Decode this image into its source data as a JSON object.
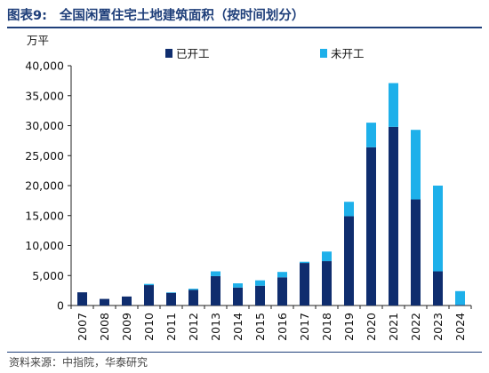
{
  "header": {
    "figure_label": "图表9:",
    "title": "全国闲置住宅土地建筑面积（按时间划分）"
  },
  "source_text": "资料来源：中指院，华泰研究",
  "chart_data": {
    "type": "bar",
    "stacked": true,
    "unit": "万平",
    "categories": [
      "2007",
      "2008",
      "2009",
      "2010",
      "2011",
      "2012",
      "2013",
      "2014",
      "2015",
      "2016",
      "2017",
      "2018",
      "2019",
      "2020",
      "2021",
      "2022",
      "2023",
      "2024"
    ],
    "series": [
      {
        "name": "已开工",
        "color": "#0f2d6e",
        "values": [
          2200,
          1100,
          1500,
          3400,
          2100,
          2600,
          4900,
          3000,
          3300,
          4700,
          7100,
          7400,
          14900,
          26400,
          29800,
          17700,
          5700,
          100
        ]
      },
      {
        "name": "未开工",
        "color": "#1eb0ea",
        "values": [
          0,
          0,
          0,
          200,
          100,
          200,
          800,
          700,
          900,
          900,
          200,
          1600,
          2400,
          4100,
          7300,
          11600,
          14300,
          2300
        ]
      }
    ],
    "ylim": [
      0,
      40000
    ],
    "yticks": [
      0,
      5000,
      10000,
      15000,
      20000,
      25000,
      30000,
      35000,
      40000
    ],
    "ytick_labels": [
      "0",
      "5,000",
      "10,000",
      "15,000",
      "20,000",
      "25,000",
      "30,000",
      "35,000",
      "40,000"
    ],
    "legend_position": "top",
    "grid": false
  }
}
